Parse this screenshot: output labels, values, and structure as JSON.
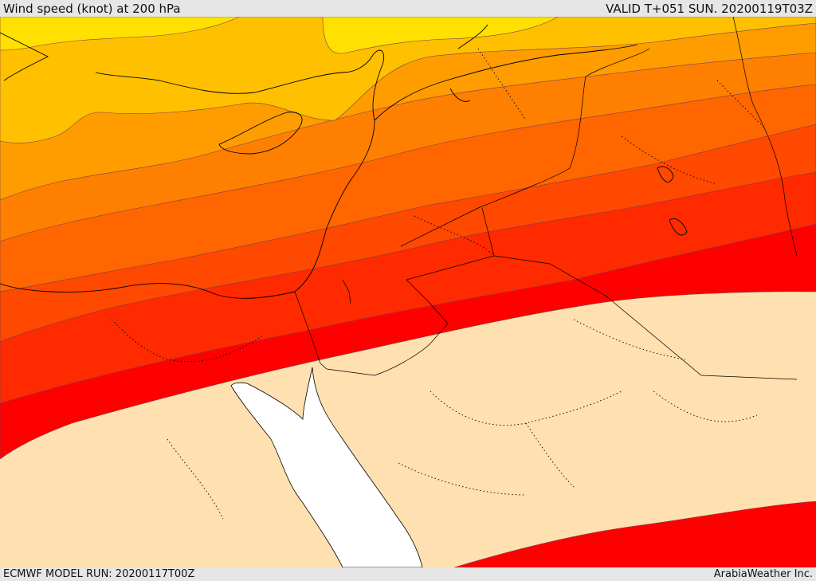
{
  "header": {
    "title": "Wind speed (knot) at 200 hPa",
    "valid": "VALID T+051 SUN. 20200119T03Z"
  },
  "footer": {
    "model_run": "ECMWF MODEL RUN: 20200117T00Z",
    "credit": "ArabiaWeather Inc."
  },
  "palette": {
    "band_1": "#ffe000",
    "band_2": "#ffc000",
    "band_3": "#ff9d00",
    "band_4": "#ff8000",
    "band_5": "#ff6600",
    "band_6": "#ff4800",
    "band_7": "#ff2a00",
    "band_8": "#ff0000",
    "calm": "#ffe0b0",
    "sea": "#ffffff"
  }
}
